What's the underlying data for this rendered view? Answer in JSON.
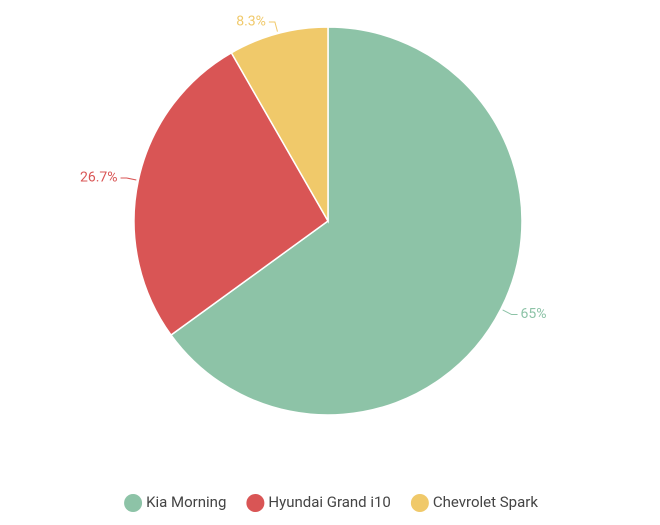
{
  "chart_data": {
    "type": "pie",
    "categories": [
      "Kia Morning",
      "Hyundai Grand i10",
      "Chevrolet Spark"
    ],
    "values": [
      65,
      26.7,
      8.3
    ],
    "value_labels": [
      "65%",
      "26.7%",
      "8.3%"
    ],
    "colors": [
      "#8dc3a7",
      "#d95555",
      "#f0c96a"
    ],
    "legend": "bottom"
  }
}
